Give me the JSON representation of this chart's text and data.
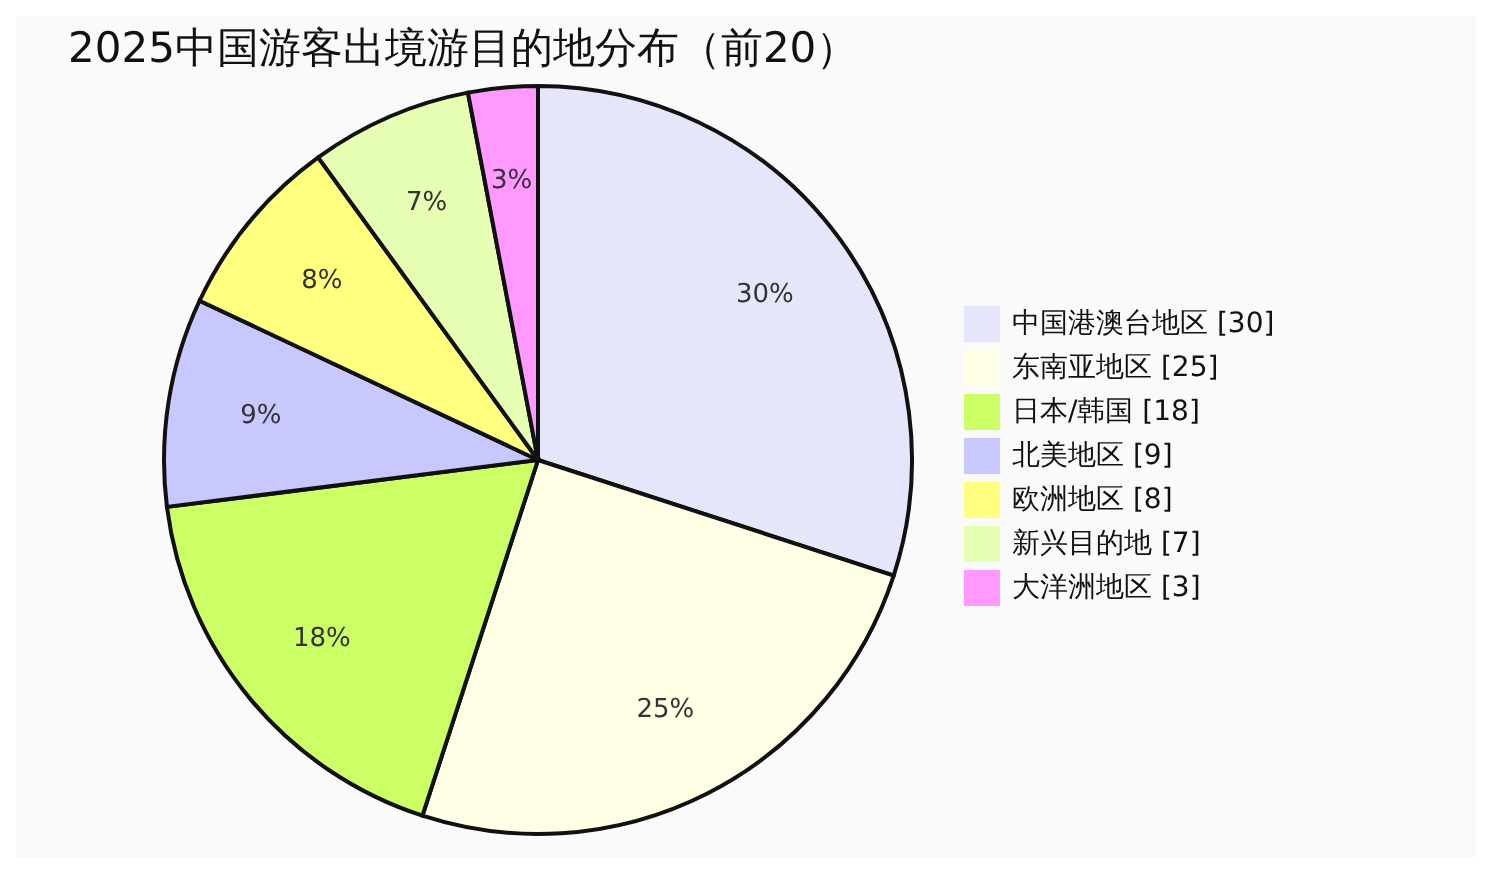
{
  "chart_data": {
    "type": "pie",
    "title": "2025中国游客出境游目的地分布（前20）",
    "categories": [
      "中国港澳台地区 [30]",
      "东南亚地区 [25]",
      "日本/韩国 [18]",
      "北美地区 [9]",
      "欧洲地区 [8]",
      "新兴目的地 [7]",
      "大洋洲地区 [3]"
    ],
    "values": [
      30,
      25,
      18,
      9,
      8,
      7,
      3
    ],
    "value_labels": [
      "30%",
      "25%",
      "18%",
      "9%",
      "8%",
      "7%",
      "3%"
    ],
    "colors": [
      "#e6e6fa",
      "#ffffe6",
      "#ccff66",
      "#c8c8ff",
      "#ffff80",
      "#e6ffb3",
      "#ff99ff"
    ],
    "legend": "right"
  }
}
